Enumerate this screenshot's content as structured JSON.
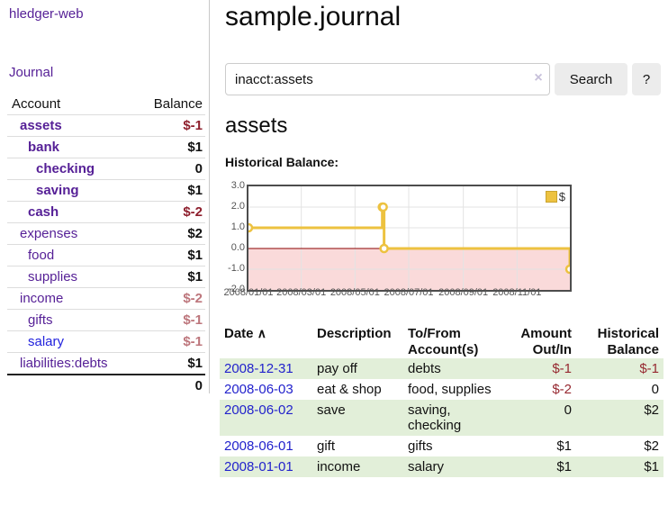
{
  "app": {
    "title": "hledger-web",
    "nav_journal": "Journal"
  },
  "sidebar": {
    "columns": {
      "account": "Account",
      "balance": "Balance"
    },
    "accounts": [
      {
        "name": "assets",
        "indent": 1,
        "balance": "$-1",
        "bold": true,
        "negative": "strong"
      },
      {
        "name": "bank",
        "indent": 2,
        "balance": "$1",
        "bold": true,
        "negative": null
      },
      {
        "name": "checking",
        "indent": 3,
        "balance": "0",
        "bold": true,
        "negative": null
      },
      {
        "name": "saving",
        "indent": 3,
        "balance": "$1",
        "bold": true,
        "negative": null
      },
      {
        "name": "cash",
        "indent": 2,
        "balance": "$-2",
        "bold": true,
        "negative": "strong"
      },
      {
        "name": "expenses",
        "indent": 1,
        "balance": "$2",
        "bold": false,
        "negative": null
      },
      {
        "name": "food",
        "indent": 2,
        "balance": "$1",
        "bold": false,
        "negative": null
      },
      {
        "name": "supplies",
        "indent": 2,
        "balance": "$1",
        "bold": false,
        "negative": null
      },
      {
        "name": "income",
        "indent": 1,
        "balance": "$-2",
        "bold": false,
        "negative": "soft"
      },
      {
        "name": "gifts",
        "indent": 2,
        "balance": "$-1",
        "bold": false,
        "negative": "soft"
      },
      {
        "name": "salary",
        "indent": 2,
        "balance": "$-1",
        "bold": false,
        "negative": "soft",
        "unvisited": true
      },
      {
        "name": "liabilities:debts",
        "indent": 1,
        "balance": "$1",
        "bold": false,
        "negative": null
      }
    ],
    "total": "0"
  },
  "header": {
    "title": "sample.journal"
  },
  "search": {
    "value": "inacct:assets",
    "clear_icon": "×",
    "button": "Search",
    "help_button": "?"
  },
  "account_page": {
    "heading": "assets",
    "chart_label": "Historical Balance:"
  },
  "chart_data": {
    "type": "line",
    "title": "Historical Balance:",
    "step": true,
    "series": [
      {
        "name": "$",
        "color": "#edc240",
        "points": [
          {
            "date": "2008-01-01",
            "value": 1
          },
          {
            "date": "2008-06-01",
            "value": 2
          },
          {
            "date": "2008-06-02",
            "value": 2
          },
          {
            "date": "2008-06-03",
            "value": 0
          },
          {
            "date": "2008-12-31",
            "value": -1
          }
        ]
      }
    ],
    "x_range": {
      "min": "2008-01-01",
      "max": "2008-12-31"
    },
    "ylim": [
      -2,
      3
    ],
    "y_ticks": [
      {
        "label": "3.0",
        "value": 3
      },
      {
        "label": "2.0",
        "value": 2
      },
      {
        "label": "1.0",
        "value": 1
      },
      {
        "label": "0.0",
        "value": 0
      },
      {
        "label": "-1.0",
        "value": -1
      },
      {
        "label": "-2.0",
        "value": -2
      }
    ],
    "x_ticks": [
      {
        "label": "2008/01/01",
        "date": "2008-01-01"
      },
      {
        "label": "2008/03/01",
        "date": "2008-03-01"
      },
      {
        "label": "2008/05/01",
        "date": "2008-05-01"
      },
      {
        "label": "2008/07/01",
        "date": "2008-07-01"
      },
      {
        "label": "2008/09/01",
        "date": "2008-09-01"
      },
      {
        "label": "2008/11/01",
        "date": "2008-11-01"
      }
    ],
    "legend_position": "top-right",
    "grid": true,
    "colors": {
      "line": "#edc240",
      "marker_fill": "#ffffff",
      "negative_region": "#fadada",
      "zero_line": "#8b0000",
      "grid_line": "#e3e3e3",
      "border": "#4d4d4d",
      "tick_text": "#545454"
    }
  },
  "register": {
    "columns": {
      "date": "Date",
      "description": "Description",
      "accounts": "To/From Account(s)",
      "amount": "Amount Out/In",
      "balance": "Historical Balance"
    },
    "sort_icon": "∧",
    "rows": [
      {
        "date": "2008-12-31",
        "description": "pay off",
        "accounts": "debts",
        "amount": "$-1",
        "amount_neg": true,
        "balance": "$-1",
        "balance_neg": true
      },
      {
        "date": "2008-06-03",
        "description": "eat & shop",
        "accounts": "food, supplies",
        "amount": "$-2",
        "amount_neg": true,
        "balance": "0",
        "balance_neg": false
      },
      {
        "date": "2008-06-02",
        "description": "save",
        "accounts": "saving,\nchecking",
        "amount": "0",
        "amount_neg": false,
        "balance": "$2",
        "balance_neg": false
      },
      {
        "date": "2008-06-01",
        "description": "gift",
        "accounts": "gifts",
        "amount": "$1",
        "amount_neg": false,
        "balance": "$2",
        "balance_neg": false
      },
      {
        "date": "2008-01-01",
        "description": "income",
        "accounts": "salary",
        "amount": "$1",
        "amount_neg": false,
        "balance": "$1",
        "balance_neg": false
      }
    ]
  },
  "colors": {
    "link_purple": "#551f96",
    "link_blue": "#2222dd",
    "negative_strong": "#8e1f2d",
    "negative_soft": "#bd767c",
    "row_green": "#e2efd9"
  }
}
